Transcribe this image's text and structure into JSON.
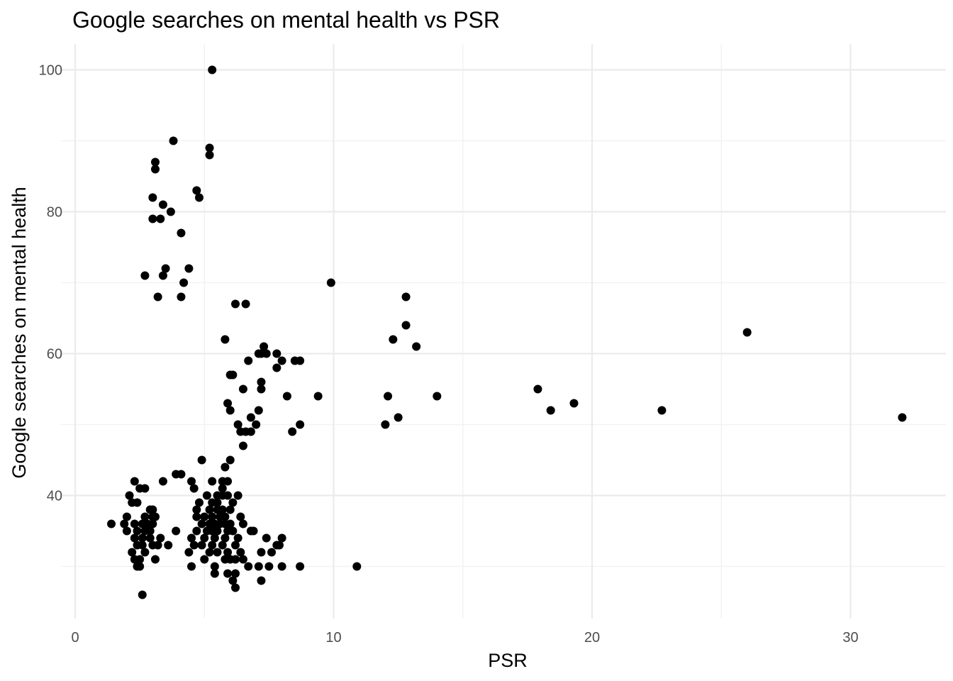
{
  "chart_data": {
    "type": "scatter",
    "title": "Google searches on mental health vs PSR",
    "xlabel": "PSR",
    "ylabel": "Google searches on mental health",
    "xlim": [
      0,
      33.5
    ],
    "ylim": [
      23,
      104
    ],
    "x_ticks": [
      0,
      10,
      20,
      30
    ],
    "x_tick_labels": [
      "0",
      "10",
      "20",
      "30"
    ],
    "x_minor_ticks": [
      5,
      15,
      25
    ],
    "y_ticks": [
      40,
      60,
      80,
      100
    ],
    "y_tick_labels": [
      "40",
      "60",
      "80",
      "100"
    ],
    "y_minor_ticks": [
      30,
      50,
      70,
      90
    ],
    "grid": true,
    "legend": "none",
    "point_color": "#000000",
    "points": [
      [
        5.3,
        100
      ],
      [
        3.8,
        90
      ],
      [
        5.2,
        89
      ],
      [
        5.2,
        88
      ],
      [
        3.1,
        87
      ],
      [
        3.1,
        86
      ],
      [
        4.7,
        83
      ],
      [
        4.8,
        82
      ],
      [
        3.0,
        82
      ],
      [
        3.4,
        81
      ],
      [
        3.7,
        80
      ],
      [
        3.0,
        79
      ],
      [
        3.3,
        79
      ],
      [
        4.1,
        77
      ],
      [
        2.7,
        71
      ],
      [
        3.5,
        72
      ],
      [
        4.4,
        72
      ],
      [
        3.4,
        71
      ],
      [
        4.2,
        70
      ],
      [
        3.2,
        68
      ],
      [
        4.1,
        68
      ],
      [
        9.9,
        70
      ],
      [
        12.8,
        68
      ],
      [
        6.2,
        67
      ],
      [
        6.6,
        67
      ],
      [
        12.8,
        64
      ],
      [
        26.0,
        63
      ],
      [
        12.3,
        62
      ],
      [
        5.8,
        62
      ],
      [
        13.2,
        61
      ],
      [
        7.3,
        61
      ],
      [
        7.1,
        60
      ],
      [
        7.4,
        60
      ],
      [
        7.8,
        60
      ],
      [
        7.2,
        60
      ],
      [
        6.7,
        59
      ],
      [
        8.0,
        59
      ],
      [
        8.5,
        59
      ],
      [
        8.7,
        59
      ],
      [
        7.8,
        58
      ],
      [
        7.2,
        56
      ],
      [
        7.2,
        55
      ],
      [
        6.5,
        55
      ],
      [
        6.0,
        57
      ],
      [
        6.1,
        57
      ],
      [
        8.2,
        54
      ],
      [
        9.4,
        54
      ],
      [
        12.1,
        54
      ],
      [
        14.0,
        54
      ],
      [
        17.9,
        55
      ],
      [
        5.9,
        53
      ],
      [
        6.0,
        52
      ],
      [
        7.1,
        52
      ],
      [
        6.8,
        51
      ],
      [
        12.5,
        51
      ],
      [
        18.4,
        52
      ],
      [
        19.3,
        53
      ],
      [
        22.7,
        52
      ],
      [
        32.0,
        51
      ],
      [
        6.3,
        50
      ],
      [
        7.0,
        50
      ],
      [
        8.7,
        50
      ],
      [
        12.0,
        50
      ],
      [
        6.4,
        49
      ],
      [
        6.6,
        49
      ],
      [
        6.8,
        49
      ],
      [
        8.4,
        49
      ],
      [
        6.5,
        47
      ],
      [
        4.9,
        45
      ],
      [
        6.0,
        45
      ],
      [
        5.8,
        44
      ],
      [
        3.9,
        43
      ],
      [
        4.1,
        43
      ],
      [
        2.3,
        42
      ],
      [
        3.4,
        42
      ],
      [
        4.5,
        42
      ],
      [
        5.3,
        42
      ],
      [
        5.7,
        42
      ],
      [
        5.9,
        42
      ],
      [
        2.5,
        41
      ],
      [
        2.7,
        41
      ],
      [
        4.6,
        41
      ],
      [
        5.7,
        41
      ],
      [
        2.1,
        40
      ],
      [
        5.1,
        40
      ],
      [
        5.5,
        40
      ],
      [
        5.7,
        40
      ],
      [
        5.9,
        40
      ],
      [
        6.3,
        40
      ],
      [
        2.2,
        39
      ],
      [
        2.4,
        39
      ],
      [
        4.8,
        39
      ],
      [
        5.3,
        39
      ],
      [
        5.5,
        39
      ],
      [
        6.1,
        39
      ],
      [
        2.9,
        38
      ],
      [
        3.0,
        38
      ],
      [
        4.7,
        38
      ],
      [
        5.2,
        38
      ],
      [
        5.5,
        38
      ],
      [
        5.7,
        38
      ],
      [
        6.0,
        38
      ],
      [
        2.0,
        37
      ],
      [
        2.7,
        37
      ],
      [
        3.0,
        37
      ],
      [
        3.1,
        37
      ],
      [
        4.7,
        37
      ],
      [
        5.0,
        37
      ],
      [
        5.3,
        37
      ],
      [
        5.6,
        37
      ],
      [
        5.8,
        37
      ],
      [
        6.4,
        37
      ],
      [
        1.4,
        36
      ],
      [
        1.9,
        36
      ],
      [
        2.3,
        36
      ],
      [
        2.6,
        36
      ],
      [
        2.8,
        36
      ],
      [
        3.0,
        36
      ],
      [
        4.9,
        36
      ],
      [
        5.2,
        36
      ],
      [
        5.4,
        36
      ],
      [
        5.6,
        36
      ],
      [
        5.8,
        36
      ],
      [
        6.0,
        36
      ],
      [
        6.5,
        36
      ],
      [
        2.0,
        35
      ],
      [
        2.4,
        35
      ],
      [
        2.7,
        35
      ],
      [
        2.9,
        35
      ],
      [
        3.9,
        35
      ],
      [
        4.7,
        35
      ],
      [
        5.1,
        35
      ],
      [
        5.3,
        35
      ],
      [
        5.5,
        35
      ],
      [
        5.9,
        35
      ],
      [
        6.1,
        35
      ],
      [
        6.8,
        35
      ],
      [
        6.9,
        35
      ],
      [
        2.3,
        34
      ],
      [
        2.6,
        34
      ],
      [
        2.9,
        34
      ],
      [
        3.3,
        34
      ],
      [
        4.5,
        34
      ],
      [
        5.0,
        34
      ],
      [
        5.4,
        34
      ],
      [
        5.8,
        34
      ],
      [
        6.3,
        34
      ],
      [
        7.4,
        34
      ],
      [
        8.0,
        34
      ],
      [
        2.4,
        33
      ],
      [
        2.6,
        33
      ],
      [
        3.0,
        33
      ],
      [
        3.2,
        33
      ],
      [
        3.6,
        33
      ],
      [
        4.6,
        33
      ],
      [
        4.9,
        33
      ],
      [
        5.3,
        33
      ],
      [
        5.7,
        33
      ],
      [
        6.2,
        33
      ],
      [
        7.8,
        33
      ],
      [
        7.9,
        33
      ],
      [
        2.2,
        32
      ],
      [
        2.7,
        32
      ],
      [
        4.4,
        32
      ],
      [
        5.2,
        32
      ],
      [
        5.5,
        32
      ],
      [
        5.9,
        32
      ],
      [
        6.4,
        32
      ],
      [
        7.2,
        32
      ],
      [
        7.6,
        32
      ],
      [
        2.3,
        31
      ],
      [
        2.5,
        31
      ],
      [
        3.1,
        31
      ],
      [
        5.0,
        31
      ],
      [
        5.8,
        31
      ],
      [
        6.0,
        31
      ],
      [
        6.2,
        31
      ],
      [
        6.5,
        31
      ],
      [
        2.4,
        30
      ],
      [
        2.5,
        30
      ],
      [
        4.5,
        30
      ],
      [
        5.4,
        30
      ],
      [
        6.7,
        30
      ],
      [
        7.1,
        30
      ],
      [
        7.5,
        30
      ],
      [
        8.0,
        30
      ],
      [
        8.7,
        30
      ],
      [
        10.9,
        30
      ],
      [
        5.4,
        29
      ],
      [
        5.9,
        29
      ],
      [
        6.2,
        29
      ],
      [
        6.1,
        28
      ],
      [
        7.2,
        28
      ],
      [
        6.2,
        27
      ],
      [
        2.6,
        26
      ]
    ]
  }
}
